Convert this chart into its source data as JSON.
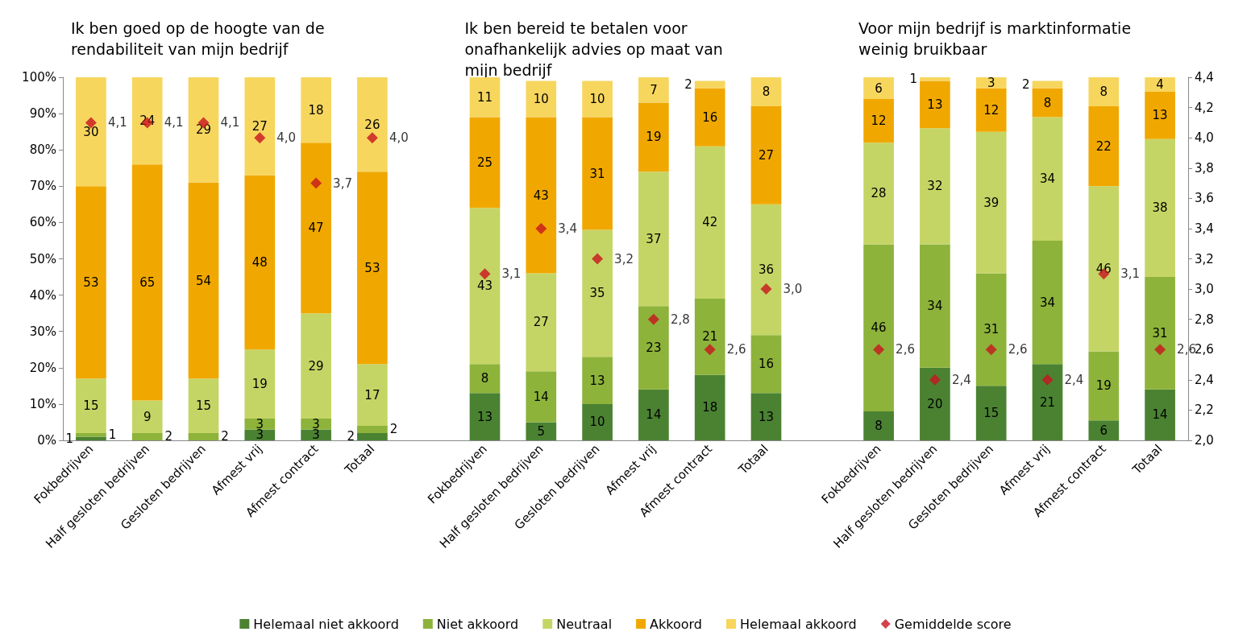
{
  "chart_data": {
    "type": "bar",
    "stacked": true,
    "data_labels": true,
    "legend": "bottom",
    "grid": false,
    "marker": "diamond",
    "annotations": [
      "Ik ben goed op de hoogte van de rendabiliteit van mijn bedrijf",
      "Ik ben bereid te betalen voor onafhankelijk advies op maat van mijn bedrijf",
      "Voor mijn bedrijf is marktinformatie weinig bruikbaar"
    ],
    "categories": [
      "Fokbedrijven",
      "Half gesloten bedrijven",
      "Gesloten bedrijven",
      "Afmest vrij",
      "Afmest contract",
      "Totaal",
      null,
      "Fokbedrijven",
      "Half gesloten bedrijven",
      "Gesloten bedrijven",
      "Afmest vrij",
      "Afmest contract",
      "Totaal",
      null,
      "Fokbedrijven",
      "Half gesloten bedrijven",
      "Gesloten bedrijven",
      "Afmest vrij",
      "Afmest contract",
      "Totaal"
    ],
    "ylim": [
      0,
      100
    ],
    "yticks": [
      {
        "value": 0,
        "label": "0%"
      },
      {
        "value": 10,
        "label": "10%"
      },
      {
        "value": 20,
        "label": "20%"
      },
      {
        "value": 30,
        "label": "30%"
      },
      {
        "value": 40,
        "label": "40%"
      },
      {
        "value": 50,
        "label": "50%"
      },
      {
        "value": 60,
        "label": "60%"
      },
      {
        "value": 70,
        "label": "70%"
      },
      {
        "value": 80,
        "label": "80%"
      },
      {
        "value": 90,
        "label": "90%"
      },
      {
        "value": 100,
        "label": "100%"
      }
    ],
    "y2lim": [
      2.0,
      4.4
    ],
    "y2ticks": [
      {
        "value": 2.0,
        "label": "2,0"
      },
      {
        "value": 2.2,
        "label": "2,2"
      },
      {
        "value": 2.4,
        "label": "2,4"
      },
      {
        "value": 2.6,
        "label": "2,6"
      },
      {
        "value": 2.8,
        "label": "2,8"
      },
      {
        "value": 3.0,
        "label": "3,0"
      },
      {
        "value": 3.2,
        "label": "3,2"
      },
      {
        "value": 3.4,
        "label": "3,4"
      },
      {
        "value": 3.6,
        "label": "3,6"
      },
      {
        "value": 3.8,
        "label": "3,8"
      },
      {
        "value": 4.0,
        "label": "4,0"
      },
      {
        "value": 4.2,
        "label": "4,2"
      },
      {
        "value": 4.4,
        "label": "4,4"
      }
    ],
    "series": [
      {
        "name": "Helemaal niet akkoord",
        "color": "#4a8232",
        "values": [
          1,
          null,
          null,
          3,
          3,
          2,
          null,
          13,
          5,
          10,
          14,
          18,
          13,
          null,
          8,
          20,
          15,
          21,
          5.5,
          14
        ],
        "value_labels": [
          "1",
          null,
          null,
          "3",
          "3",
          "2",
          null,
          "13",
          "5",
          "10",
          "14",
          "18",
          "13",
          null,
          "8",
          "20",
          "15",
          "21",
          "6",
          "14"
        ]
      },
      {
        "name": "Niet akkoord",
        "color": "#8db33a",
        "values": [
          1,
          2,
          2,
          3,
          3,
          2,
          null,
          8,
          14,
          13,
          23,
          21,
          16,
          null,
          46,
          34,
          31,
          34,
          19,
          31
        ]
      },
      {
        "name": "Neutraal",
        "color": "#c5d565",
        "values": [
          15,
          9,
          15,
          19,
          29,
          17,
          null,
          43,
          27,
          35,
          37,
          42,
          36,
          null,
          28,
          32,
          39,
          34,
          45.5,
          38
        ],
        "value_labels": [
          "15",
          "9",
          "15",
          "19",
          "29",
          "17",
          null,
          "43",
          "27",
          "35",
          "37",
          "42",
          "36",
          null,
          "28",
          "32",
          "39",
          "34",
          "46",
          "38"
        ]
      },
      {
        "name": "Akkoord",
        "color": "#f0a800",
        "values": [
          53,
          65,
          54,
          48,
          47,
          53,
          null,
          25,
          43,
          31,
          19,
          16,
          27,
          null,
          12,
          13,
          12,
          8,
          22,
          13
        ]
      },
      {
        "name": "Helemaal akkoord",
        "color": "#f7d65e",
        "values": [
          30,
          24,
          29,
          27,
          18,
          26,
          null,
          11,
          10,
          10,
          7,
          2,
          8,
          null,
          6,
          1,
          3,
          2,
          8,
          4
        ]
      },
      {
        "name": "Gemiddelde score",
        "type": "scatter",
        "axis": "y2",
        "color": "#c8141e",
        "values": [
          4.1,
          4.1,
          4.1,
          4.0,
          3.7,
          4.0,
          null,
          3.1,
          3.4,
          3.2,
          2.8,
          2.6,
          3.0,
          null,
          2.6,
          2.4,
          2.6,
          2.4,
          3.1,
          2.6
        ],
        "value_labels": [
          "4,1",
          "4,1",
          "4,1",
          "4,0",
          "3,7",
          "4,0",
          null,
          "3,1",
          "3,4",
          "3,2",
          "2,8",
          "2,6",
          "3,0",
          null,
          "2,6",
          "2,4",
          "2,6",
          "2,4",
          "3,1",
          "2,6"
        ]
      }
    ]
  }
}
